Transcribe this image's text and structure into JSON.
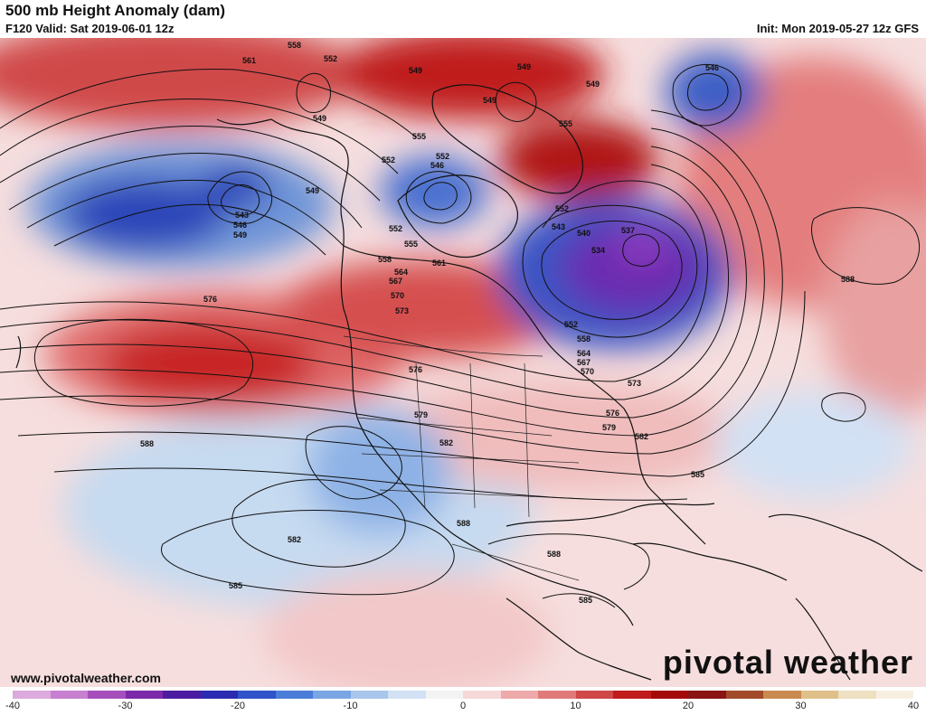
{
  "header": {
    "title": "500 mb Height Anomaly (dam)",
    "valid": "F120 Valid: Sat 2019-06-01 12z",
    "init": "Init: Mon 2019-05-27 12z GFS"
  },
  "footer": {
    "website": "www.pivotalweather.com",
    "brand": "pivotal weather"
  },
  "colorbar": {
    "ticks": [
      "-40",
      "-30",
      "-20",
      "-10",
      "0",
      "10",
      "20",
      "30",
      "40"
    ],
    "colors": [
      "#dcaadc",
      "#c77fd0",
      "#a64fbc",
      "#7a2aa8",
      "#4b1ca0",
      "#2a2bb0",
      "#2f53c8",
      "#4a7dd8",
      "#7aa6e3",
      "#a9c6ec",
      "#d2e1f4",
      "#f3f3f3",
      "#f6d8d8",
      "#eeaaaa",
      "#e07a7a",
      "#d04848",
      "#c01c1c",
      "#a40a0a",
      "#8a1414",
      "#a24a2a",
      "#c98a50",
      "#dfc08a",
      "#eee0c0",
      "#f7f0e2"
    ]
  },
  "contour_labels": [
    "558",
    "561",
    "552",
    "549",
    "549",
    "549",
    "546",
    "555",
    "552",
    "552",
    "549",
    "546",
    "543",
    "546",
    "549",
    "549",
    "552",
    "555",
    "552",
    "543",
    "540",
    "537",
    "534",
    "552",
    "558",
    "561",
    "564",
    "567",
    "570",
    "573",
    "576",
    "576",
    "579",
    "582",
    "585",
    "588",
    "588",
    "588",
    "582",
    "585",
    "588",
    "585",
    "558",
    "564",
    "567",
    "570",
    "573",
    "576",
    "579",
    "582",
    "555",
    "549"
  ]
}
